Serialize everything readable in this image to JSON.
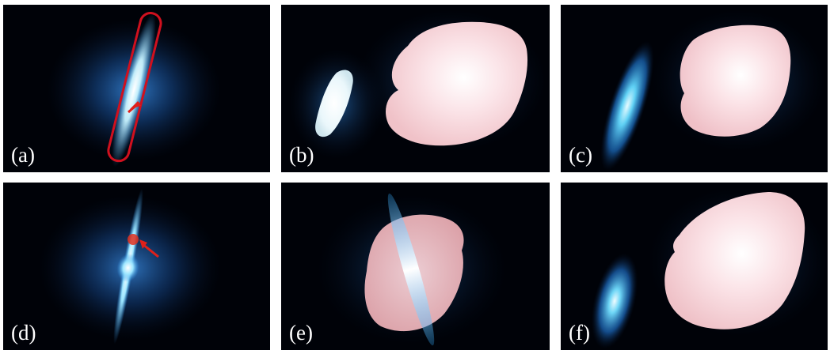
{
  "figure": {
    "panels": [
      {
        "id": "a",
        "label": "(a)"
      },
      {
        "id": "b",
        "label": "(b)"
      },
      {
        "id": "c",
        "label": "(c)"
      },
      {
        "id": "d",
        "label": "(d)"
      },
      {
        "id": "e",
        "label": "(e)"
      },
      {
        "id": "f",
        "label": "(f)"
      }
    ],
    "colors": {
      "background": "#000208",
      "galaxy_glow": "#2a7fd8",
      "galaxy_core": "#e8fbff",
      "segmentation_mask": "#f6c6cc",
      "outline": "#d0101e",
      "marker": "#e0201a"
    }
  }
}
